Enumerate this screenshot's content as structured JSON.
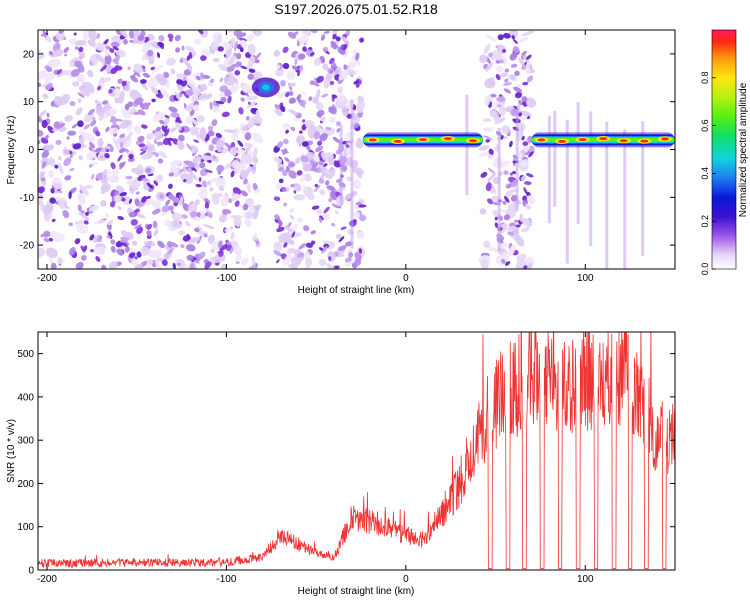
{
  "title": "S197.2026.075.01.52.R18",
  "chart_data": [
    {
      "type": "heatmap",
      "xlabel": "Height of straight line (km)",
      "ylabel": "Frequency (Hz)",
      "xlim": [
        -205,
        150
      ],
      "ylim": [
        -25,
        25
      ],
      "x_ticks": [
        -200,
        -100,
        0,
        100
      ],
      "y_ticks": [
        -20,
        -10,
        0,
        10,
        20
      ],
      "colorbar": {
        "label": "Normalized spectral amplitude",
        "range": [
          0,
          1
        ],
        "ticks": [
          0.0,
          0.2,
          0.4,
          0.6,
          0.8
        ]
      },
      "features": [
        {
          "name": "noise-region",
          "x_range": [
            -205,
            -82
          ],
          "y_range": [
            -25,
            25
          ]
        },
        {
          "name": "noise-region",
          "x_range": [
            -72,
            -24
          ],
          "y_range": [
            -25,
            25
          ]
        },
        {
          "name": "noise-region",
          "x_range": [
            43,
            70
          ],
          "y_range": [
            -25,
            25
          ]
        },
        {
          "name": "signal-band",
          "x_range": [
            -24,
            43
          ],
          "freq_hz": 2,
          "peak_amplitude": 0.95
        },
        {
          "name": "signal-band",
          "x_range": [
            70,
            150
          ],
          "freq_hz": 2,
          "peak_amplitude": 0.95
        },
        {
          "name": "burst",
          "x": -78,
          "freq_hz": 13,
          "peak_amplitude": 0.45
        }
      ],
      "colors": {
        "noise": "#7b2cd6",
        "low": "#ddc9f3",
        "band": "#1530d8"
      }
    },
    {
      "type": "line",
      "xlabel": "Height of straight line (km)",
      "ylabel": "SNR (10 * v/v)",
      "xlim": [
        -205,
        150
      ],
      "ylim": [
        0,
        550
      ],
      "x_ticks": [
        -200,
        -100,
        0,
        100
      ],
      "y_ticks": [
        0,
        100,
        200,
        300,
        400,
        500
      ],
      "series": [
        {
          "name": "SNR",
          "color": "#ee3333",
          "x": [
            -205,
            -100,
            -80,
            -70,
            -60,
            -50,
            -40,
            -30,
            -20,
            -10,
            0,
            10,
            20,
            30,
            40,
            50,
            60,
            70,
            80,
            90,
            100,
            110,
            120,
            130,
            140,
            150
          ],
          "y": [
            15,
            18,
            30,
            80,
            60,
            40,
            30,
            120,
            110,
            100,
            80,
            70,
            130,
            200,
            320,
            380,
            420,
            440,
            430,
            410,
            450,
            420,
            460,
            400,
            310,
            300
          ],
          "dropouts": [
            47,
            57,
            66,
            76,
            86,
            96,
            106,
            116,
            125,
            134,
            144
          ]
        }
      ]
    }
  ]
}
